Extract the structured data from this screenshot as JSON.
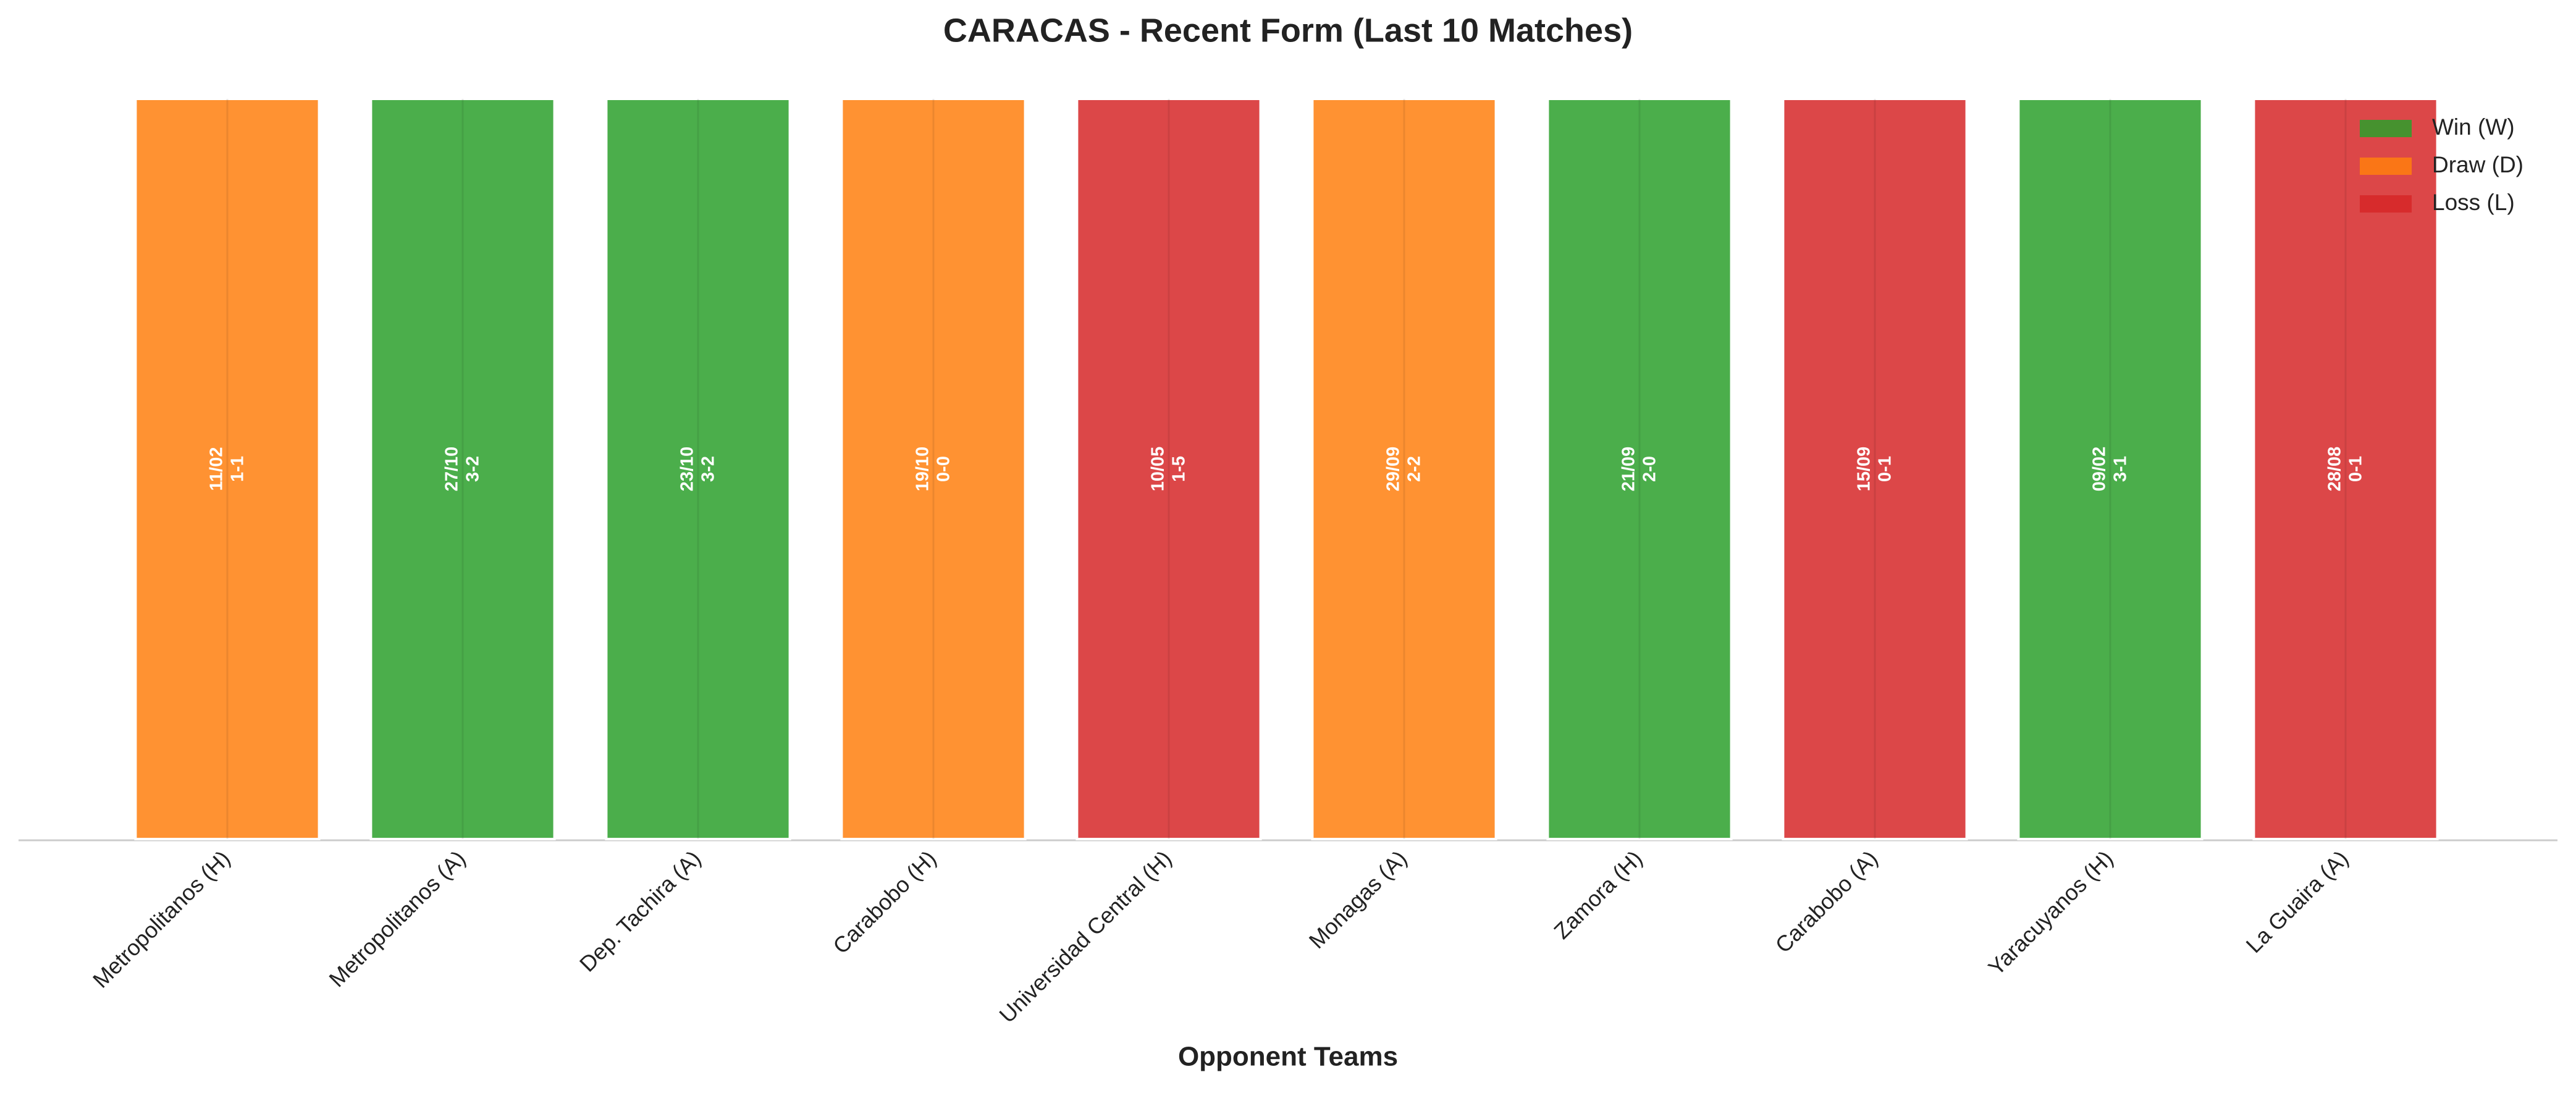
{
  "chart_data": {
    "type": "bar",
    "title": "CARACAS - Recent Form (Last 10 Matches)",
    "x_label": "Opponent Teams",
    "categories": [
      "Metropolitanos (H)",
      "Metropolitanos (A)",
      "Dep. Tachira (A)",
      "Carabobo (H)",
      "Universidad Central (H)",
      "Monagas (A)",
      "Zamora (H)",
      "Carabobo (A)",
      "Yaracuyanos (H)",
      "La Guaira (A)"
    ],
    "dates": [
      "11/02",
      "27/10",
      "23/10",
      "19/10",
      "10/05",
      "29/09",
      "21/09",
      "15/09",
      "09/02",
      "28/08"
    ],
    "scores": [
      "1-1",
      "3-2",
      "3-2",
      "0-0",
      "1-5",
      "2-2",
      "2-0",
      "0-1",
      "3-1",
      "0-1"
    ],
    "series": [
      {
        "name": "Win (W)",
        "color": "#2ca02c",
        "values": [
          null,
          1,
          1,
          null,
          null,
          null,
          1,
          null,
          1,
          null
        ]
      },
      {
        "name": "Draw (D)",
        "color": "#ff7f0e",
        "values": [
          1,
          null,
          null,
          1,
          null,
          1,
          null,
          null,
          null,
          null
        ]
      },
      {
        "name": "Loss (L)",
        "color": "#d62728",
        "values": [
          null,
          null,
          null,
          null,
          1,
          null,
          null,
          1,
          null,
          1
        ]
      }
    ],
    "ylim": [
      0,
      1
    ],
    "grid": true,
    "legend": "upper right"
  }
}
